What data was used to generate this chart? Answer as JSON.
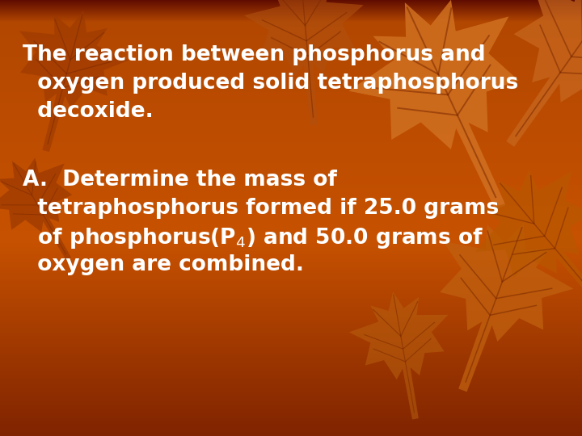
{
  "text_color": "#FFFFFF",
  "line1": "The reaction between phosphorus and",
  "line2": "  oxygen produced solid tetraphosphorus",
  "line3": "  decoxide.",
  "line5": "A.  Determine the mass of",
  "line6": "  tetraphosphorus formed if 25.0 grams",
  "line7": "  of phosphorus(P$_4$) and 50.0 grams of",
  "line8": "  oxygen are combined.",
  "font_size": 19,
  "figwidth": 7.2,
  "figheight": 5.4,
  "dpi": 100
}
